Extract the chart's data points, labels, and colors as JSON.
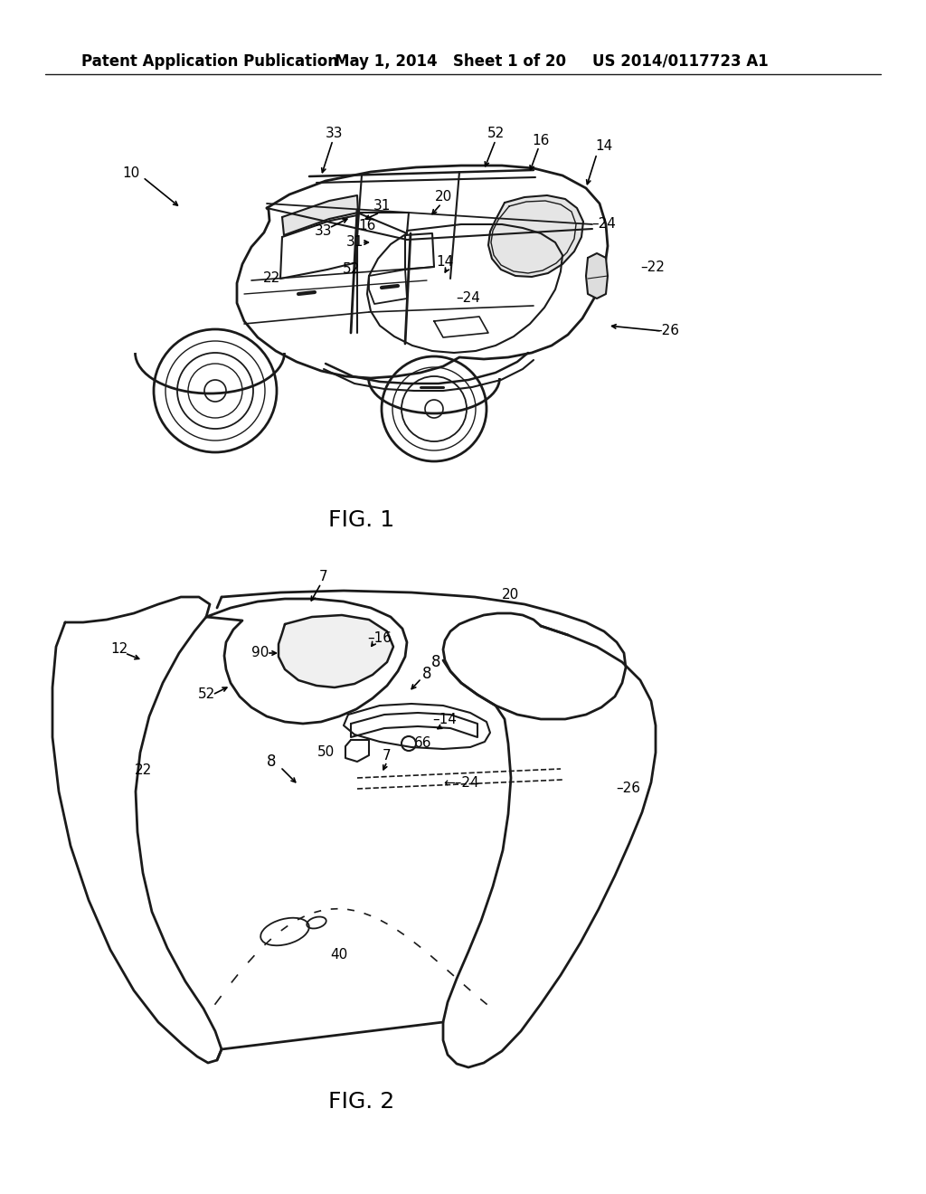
{
  "background_color": "#ffffff",
  "header_left": "Patent Application Publication",
  "header_mid": "May 1, 2014   Sheet 1 of 20",
  "header_right": "US 2014/0117723 A1",
  "fig1_caption": "FIG. 1",
  "fig2_caption": "FIG. 2",
  "line_color": "#1a1a1a",
  "text_color": "#000000"
}
